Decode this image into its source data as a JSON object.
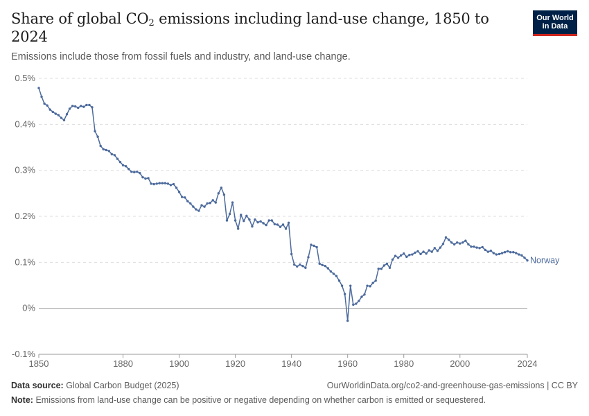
{
  "header": {
    "title_main": "Share of global CO",
    "title_sub": "2",
    "title_rest": " emissions including land-use change, 1850 to 2024",
    "subtitle": "Emissions include those from fossil fuels and industry, and land-use change.",
    "logo_line1": "Our World",
    "logo_line2": "in Data"
  },
  "footer": {
    "source_label": "Data source:",
    "source_text": "Global Carbon Budget (2025)",
    "url_text": "OurWorldinData.org/co2-and-greenhouse-gas-emissions | CC BY",
    "note_label": "Note:",
    "note_text": "Emissions from land-use change can be positive or negative depending on whether carbon is emitted or sequestered."
  },
  "colors": {
    "series": "#4c6a9c",
    "grid": "#dddddd",
    "zero": "#999999",
    "logo_bg": "#002147",
    "logo_accent": "#ce261e"
  },
  "chart_data": {
    "type": "line",
    "title": "Share of global CO2 emissions including land-use change, 1850 to 2024",
    "ylim": [
      -0.1,
      0.5
    ],
    "xlim": [
      1850,
      2024
    ],
    "y_ticks": [
      -0.1,
      0,
      0.1,
      0.2,
      0.3,
      0.4,
      0.5
    ],
    "y_tick_labels": [
      "-0.1%",
      "0%",
      "0.1%",
      "0.2%",
      "0.3%",
      "0.4%",
      "0.5%"
    ],
    "x_ticks": [
      1850,
      1880,
      1900,
      1920,
      1940,
      1960,
      1980,
      2000,
      2024
    ],
    "x_tick_labels": [
      "1850",
      "1880",
      "1900",
      "1920",
      "1940",
      "1960",
      "1980",
      "2000",
      "2024"
    ],
    "grid": "horizontal dashed",
    "series": [
      {
        "name": "Norway",
        "x": [
          1850,
          1851,
          1852,
          1853,
          1854,
          1855,
          1856,
          1857,
          1858,
          1859,
          1860,
          1861,
          1862,
          1863,
          1864,
          1865,
          1866,
          1867,
          1868,
          1869,
          1870,
          1871,
          1872,
          1873,
          1874,
          1875,
          1876,
          1877,
          1878,
          1879,
          1880,
          1881,
          1882,
          1883,
          1884,
          1885,
          1886,
          1887,
          1888,
          1889,
          1890,
          1891,
          1892,
          1893,
          1894,
          1895,
          1896,
          1897,
          1898,
          1899,
          1900,
          1901,
          1902,
          1903,
          1904,
          1905,
          1906,
          1907,
          1908,
          1909,
          1910,
          1911,
          1912,
          1913,
          1914,
          1915,
          1916,
          1917,
          1918,
          1919,
          1920,
          1921,
          1922,
          1923,
          1924,
          1925,
          1926,
          1927,
          1928,
          1929,
          1930,
          1931,
          1932,
          1933,
          1934,
          1935,
          1936,
          1937,
          1938,
          1939,
          1940,
          1941,
          1942,
          1943,
          1944,
          1945,
          1946,
          1947,
          1948,
          1949,
          1950,
          1951,
          1952,
          1953,
          1954,
          1955,
          1956,
          1957,
          1958,
          1959,
          1960,
          1961,
          1962,
          1963,
          1964,
          1965,
          1966,
          1967,
          1968,
          1969,
          1970,
          1971,
          1972,
          1973,
          1974,
          1975,
          1976,
          1977,
          1978,
          1979,
          1980,
          1981,
          1982,
          1983,
          1984,
          1985,
          1986,
          1987,
          1988,
          1989,
          1990,
          1991,
          1992,
          1993,
          1994,
          1995,
          1996,
          1997,
          1998,
          1999,
          2000,
          2001,
          2002,
          2003,
          2004,
          2005,
          2006,
          2007,
          2008,
          2009,
          2010,
          2011,
          2012,
          2013,
          2014,
          2015,
          2016,
          2017,
          2018,
          2019,
          2020,
          2021,
          2022,
          2023,
          2024
        ],
        "values": [
          0.479,
          0.46,
          0.445,
          0.441,
          0.432,
          0.427,
          0.423,
          0.42,
          0.414,
          0.409,
          0.422,
          0.434,
          0.44,
          0.439,
          0.436,
          0.44,
          0.438,
          0.442,
          0.442,
          0.437,
          0.385,
          0.373,
          0.353,
          0.346,
          0.344,
          0.342,
          0.335,
          0.333,
          0.325,
          0.318,
          0.311,
          0.309,
          0.303,
          0.297,
          0.296,
          0.297,
          0.294,
          0.285,
          0.282,
          0.283,
          0.271,
          0.27,
          0.271,
          0.272,
          0.272,
          0.272,
          0.271,
          0.268,
          0.27,
          0.262,
          0.253,
          0.242,
          0.241,
          0.233,
          0.228,
          0.221,
          0.215,
          0.212,
          0.224,
          0.221,
          0.228,
          0.229,
          0.235,
          0.23,
          0.25,
          0.262,
          0.247,
          0.191,
          0.205,
          0.23,
          0.191,
          0.173,
          0.203,
          0.19,
          0.201,
          0.193,
          0.178,
          0.193,
          0.187,
          0.189,
          0.185,
          0.181,
          0.191,
          0.191,
          0.183,
          0.182,
          0.177,
          0.182,
          0.173,
          0.186,
          0.118,
          0.095,
          0.091,
          0.095,
          0.092,
          0.088,
          0.111,
          0.138,
          0.136,
          0.133,
          0.097,
          0.094,
          0.092,
          0.087,
          0.08,
          0.075,
          0.07,
          0.06,
          0.049,
          0.031,
          -0.027,
          0.049,
          0.008,
          0.01,
          0.016,
          0.025,
          0.03,
          0.049,
          0.048,
          0.055,
          0.06,
          0.086,
          0.086,
          0.093,
          0.097,
          0.088,
          0.106,
          0.114,
          0.11,
          0.115,
          0.119,
          0.112,
          0.116,
          0.117,
          0.121,
          0.124,
          0.118,
          0.123,
          0.119,
          0.126,
          0.123,
          0.131,
          0.125,
          0.132,
          0.14,
          0.154,
          0.149,
          0.143,
          0.139,
          0.143,
          0.141,
          0.143,
          0.147,
          0.139,
          0.134,
          0.134,
          0.132,
          0.131,
          0.133,
          0.127,
          0.123,
          0.125,
          0.12,
          0.117,
          0.118,
          0.12,
          0.122,
          0.124,
          0.122,
          0.122,
          0.12,
          0.117,
          0.115,
          0.11,
          0.104
        ]
      }
    ]
  }
}
